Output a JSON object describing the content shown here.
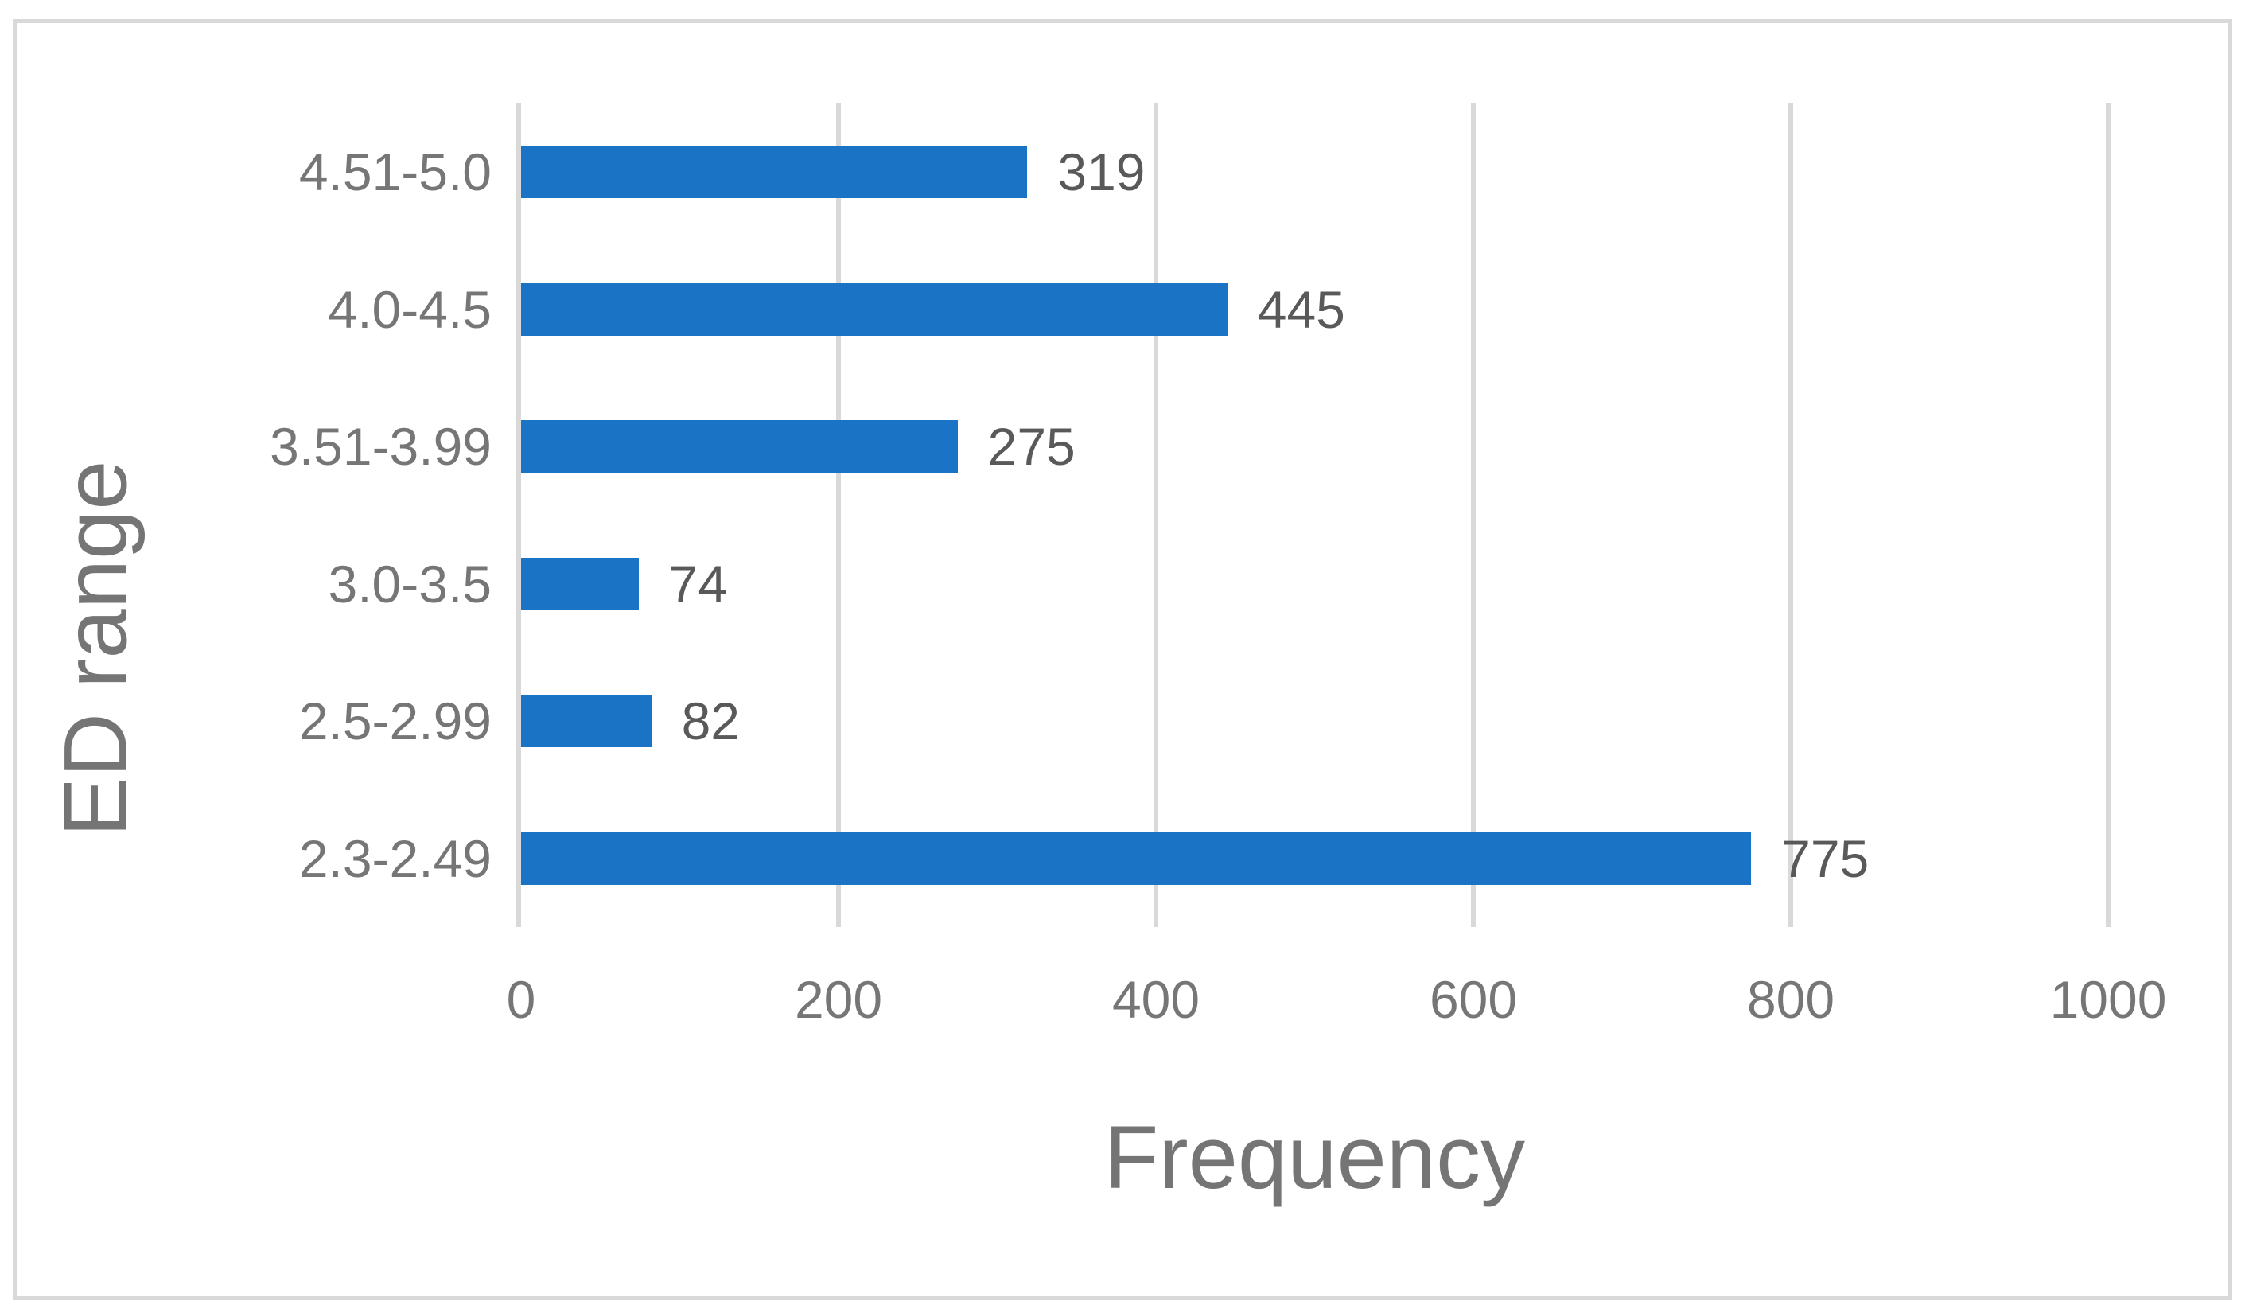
{
  "chart_data": {
    "type": "bar",
    "orientation": "horizontal",
    "title": "",
    "xlabel": "Frequency",
    "ylabel": "ED range",
    "categories": [
      "4.51-5.0",
      "4.0-4.5",
      "3.51-3.99",
      "3.0-3.5",
      "2.5-2.99",
      "2.3-2.49"
    ],
    "values": [
      319,
      445,
      275,
      74,
      82,
      775
    ],
    "data_labels": [
      "319",
      "445",
      "275",
      "74",
      "82",
      "775"
    ],
    "x_ticks": [
      0,
      200,
      400,
      600,
      800,
      1000
    ],
    "xlim": [
      0,
      1000
    ],
    "grid": "vertical-gridlines",
    "legend": "none",
    "colors": {
      "bar": "#1b73c6",
      "data_label_text": "#595959",
      "axis_text": "#767676",
      "axis_title_text": "#757575",
      "gridline": "#d9d9d9",
      "frame_border": "#d9d9d9",
      "background": "#ffffff"
    }
  }
}
